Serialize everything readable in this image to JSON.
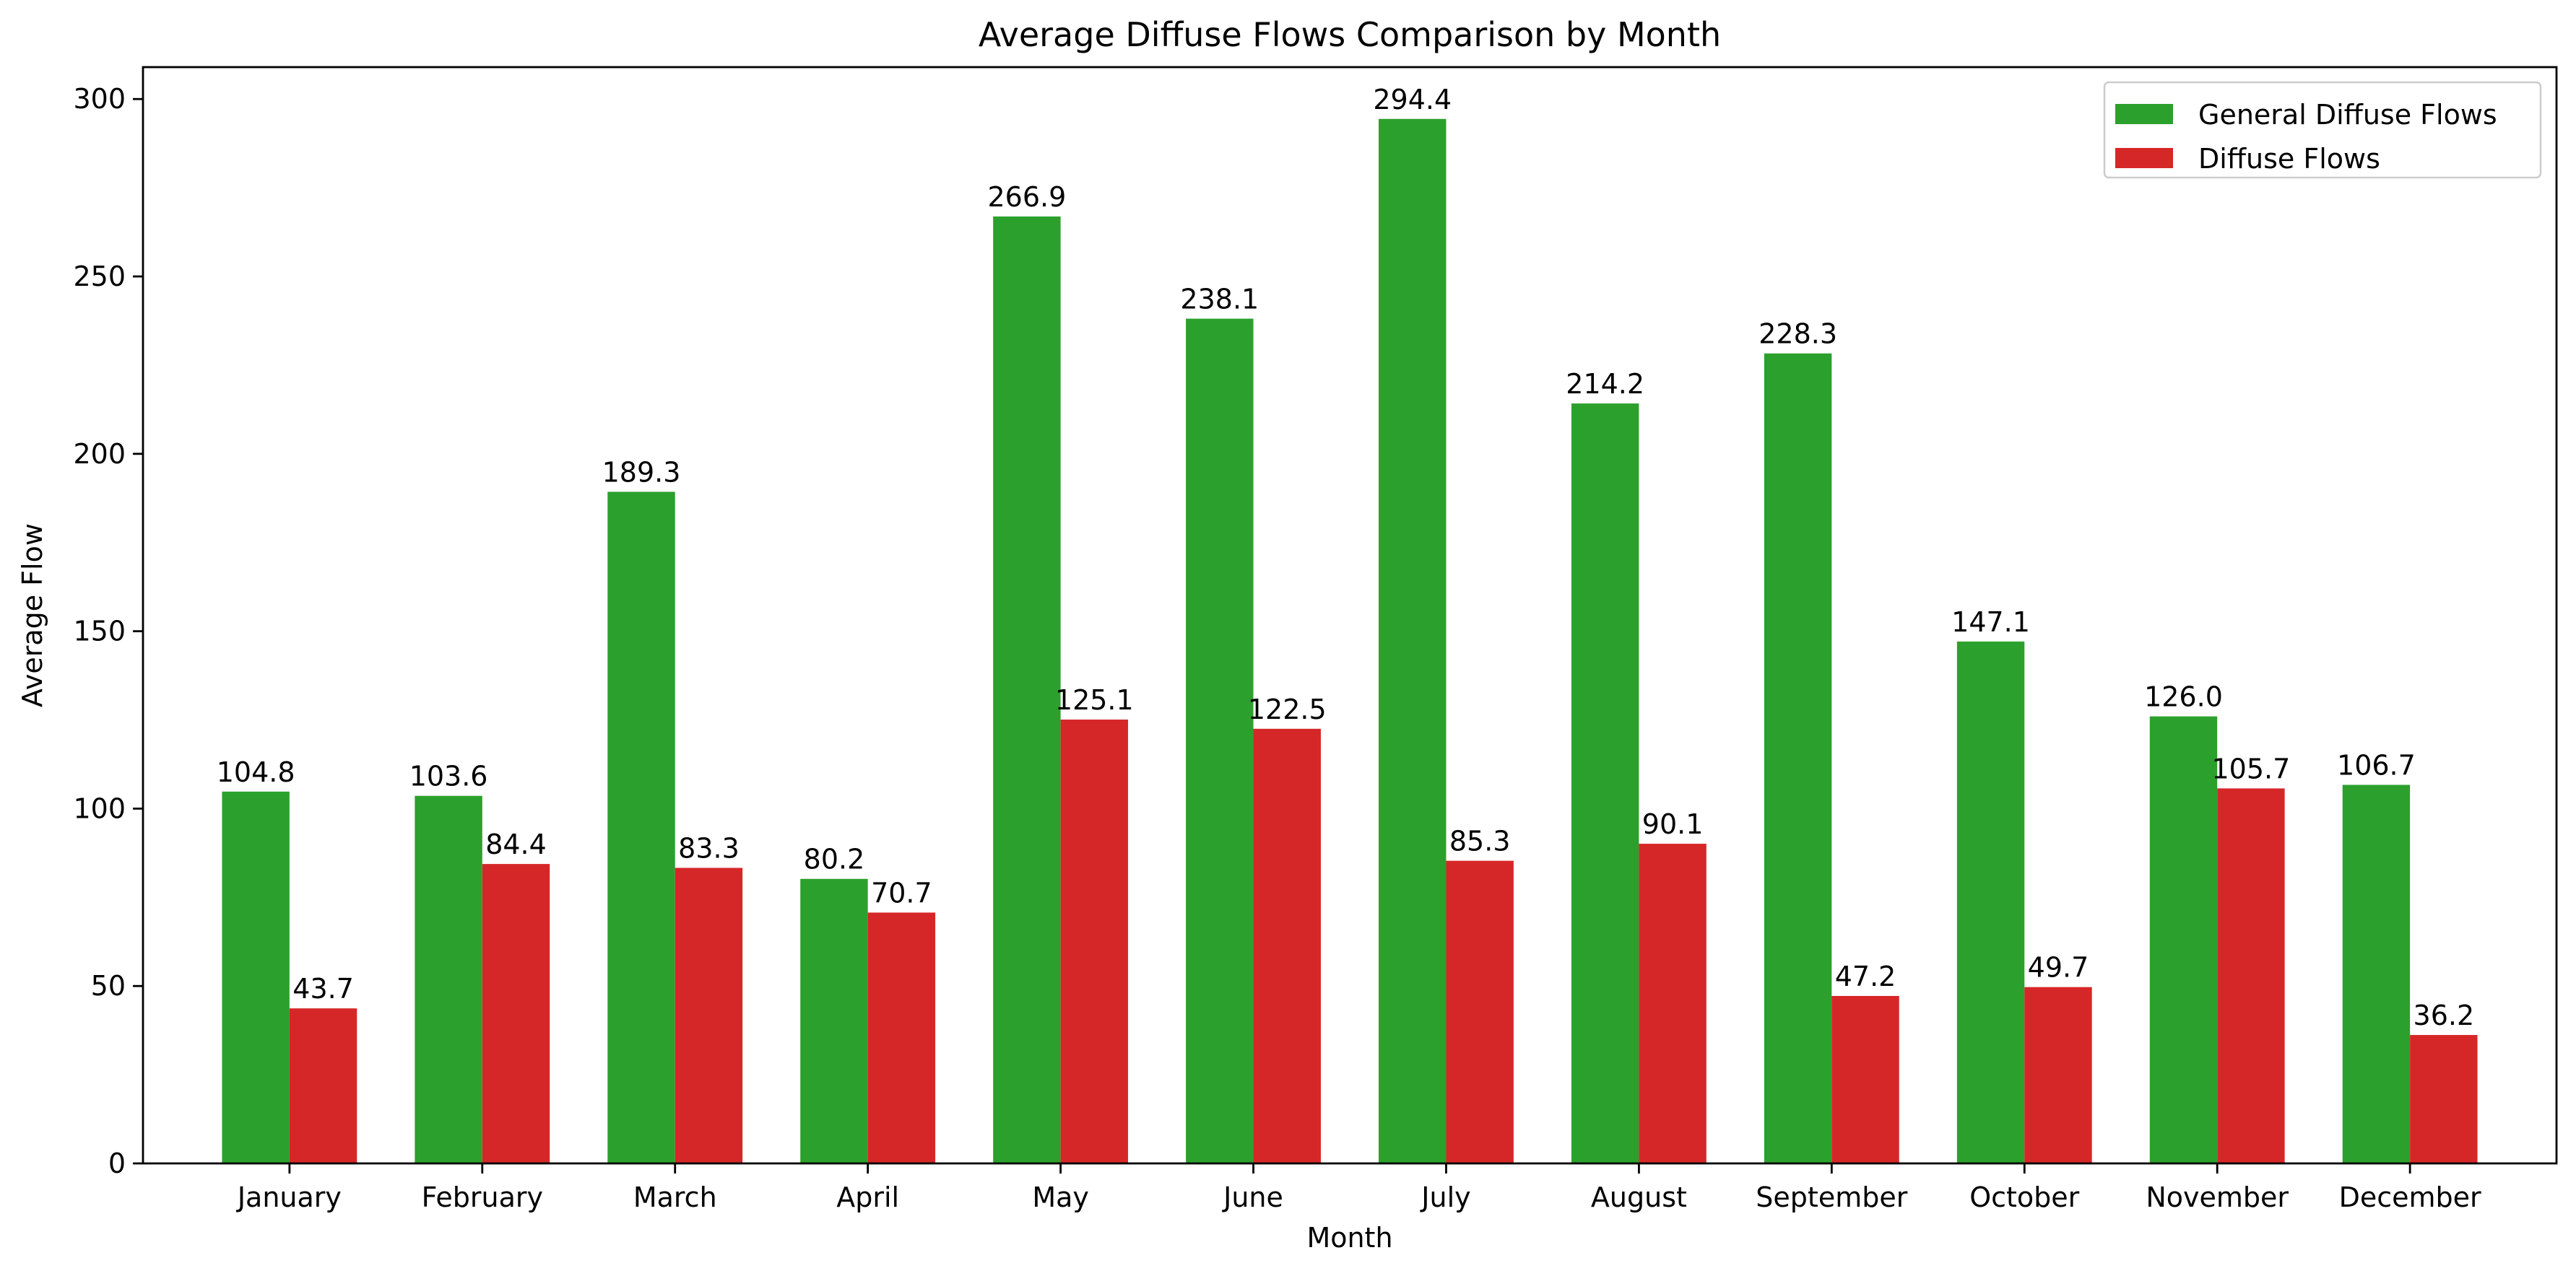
{
  "chart_data": {
    "type": "bar",
    "title": "Average Diffuse Flows Comparison by Month",
    "xlabel": "Month",
    "ylabel": "Average Flow",
    "ylim": [
      0,
      309
    ],
    "yticks": [
      0,
      50,
      100,
      150,
      200,
      250,
      300
    ],
    "grid": false,
    "legend_position": "top-right",
    "categories": [
      "January",
      "February",
      "March",
      "April",
      "May",
      "June",
      "July",
      "August",
      "September",
      "October",
      "November",
      "December"
    ],
    "series": [
      {
        "name": "General Diffuse Flows",
        "color": "#2ca02c",
        "values": [
          104.8,
          103.6,
          189.3,
          80.2,
          266.9,
          238.1,
          294.4,
          214.2,
          228.3,
          147.1,
          126.0,
          106.7
        ]
      },
      {
        "name": "Diffuse Flows",
        "color": "#d62728",
        "values": [
          43.7,
          84.4,
          83.3,
          70.7,
          125.1,
          122.5,
          85.3,
          90.1,
          47.2,
          49.7,
          105.7,
          36.2
        ]
      }
    ]
  }
}
